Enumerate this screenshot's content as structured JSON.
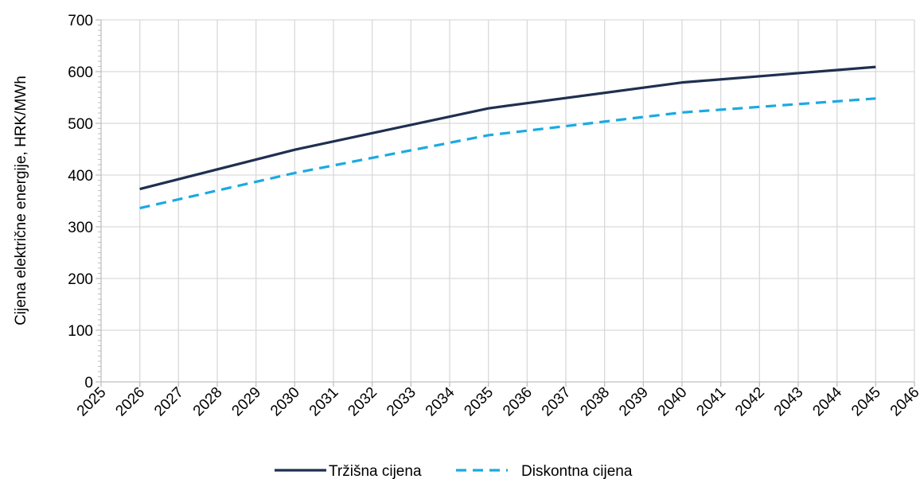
{
  "chart_data": {
    "type": "line",
    "title": "",
    "xlabel": "",
    "ylabel": "Cijena električne energije, HRK/MWh",
    "x_ticks": [
      "2025",
      "2026",
      "2027",
      "2028",
      "2029",
      "2030",
      "2031",
      "2032",
      "2033",
      "2034",
      "2035",
      "2036",
      "2037",
      "2038",
      "2039",
      "2040",
      "2041",
      "2042",
      "2043",
      "2044",
      "2045",
      "2046"
    ],
    "xlim": [
      2025,
      2046
    ],
    "ylim": [
      0,
      700
    ],
    "y_ticks": [
      0,
      100,
      200,
      300,
      400,
      500,
      600,
      700
    ],
    "grid": true,
    "legend_position": "bottom-center",
    "series": [
      {
        "name": "Tržišna cijena",
        "color": "#1f3050",
        "style": "solid",
        "points": [
          [
            2026,
            373
          ],
          [
            2030,
            449
          ],
          [
            2035,
            529
          ],
          [
            2040,
            579
          ],
          [
            2045,
            609
          ]
        ]
      },
      {
        "name": "Diskontna cijena",
        "color": "#1aaae2",
        "style": "dashed",
        "points": [
          [
            2026,
            336
          ],
          [
            2030,
            404
          ],
          [
            2035,
            477
          ],
          [
            2040,
            521
          ],
          [
            2045,
            548
          ]
        ]
      }
    ]
  }
}
